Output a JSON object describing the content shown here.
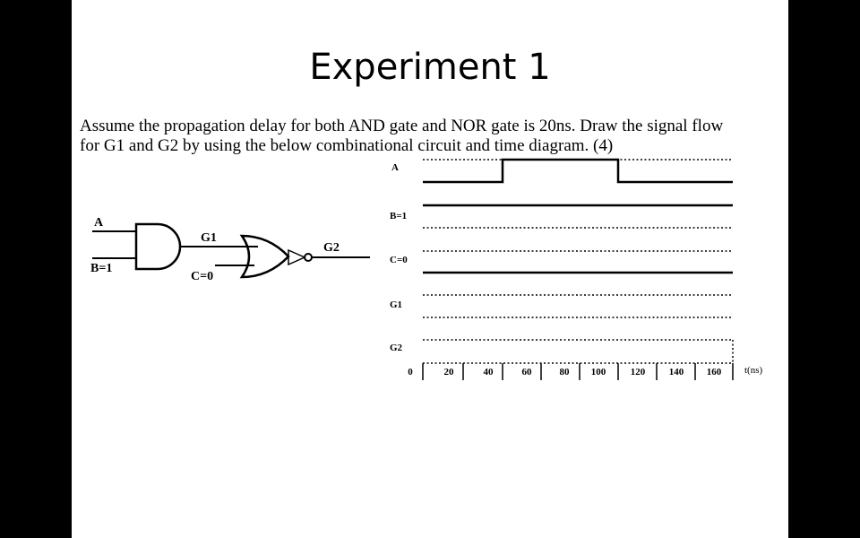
{
  "slide": {
    "title": "Experiment 1",
    "text_line1": "Assume the propagation delay for both AND gate and NOR gate is 20ns. Draw the signal flow",
    "text_line2": "for G1 and G2 by using the below combinational circuit and time diagram. (4)"
  },
  "circuit": {
    "input_a": "A",
    "input_b": "B=1",
    "input_c": "C=0",
    "and_output": "G1",
    "nor_output": "G2"
  },
  "timing": {
    "signals": [
      "A",
      "B=1",
      "C=0",
      "G1",
      "G2"
    ],
    "time_labels": [
      "0",
      "20",
      "40",
      "60",
      "80",
      "100",
      "120",
      "140",
      "160"
    ],
    "axis_unit": "t(ns)"
  }
}
